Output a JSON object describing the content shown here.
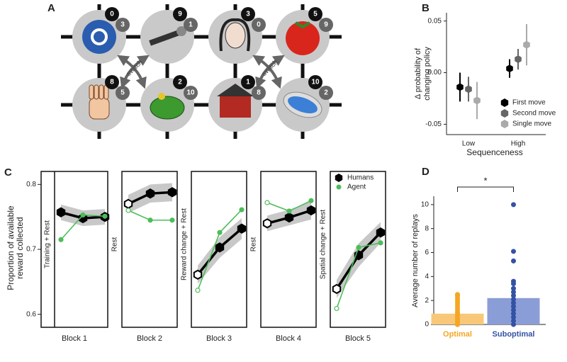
{
  "diagram": {
    "panel_label": "A",
    "nodes": [
      {
        "dark": 0,
        "light": 3
      },
      {
        "dark": 9,
        "light": 1
      },
      {
        "dark": 3,
        "light": 0
      },
      {
        "dark": 5,
        "light": 9
      },
      {
        "dark": 8,
        "light": 5
      },
      {
        "dark": 2,
        "light": 10
      },
      {
        "dark": 1,
        "light": 8
      },
      {
        "dark": 10,
        "light": 2
      }
    ],
    "links": [
      "switch",
      "switch"
    ]
  },
  "chart_data": [
    {
      "type": "errorbar",
      "panel_label": "B",
      "ylabel": [
        "Δ probability of",
        "changing policy"
      ],
      "xlabel": "Sequenceness",
      "categories": [
        "Low",
        "High"
      ],
      "series": [
        {
          "name": "First move",
          "color": "#000000",
          "values": [
            -0.014,
            0.004
          ],
          "errors": [
            0.014,
            0.009
          ]
        },
        {
          "name": "Second move",
          "color": "#666666",
          "values": [
            -0.016,
            0.013
          ],
          "errors": [
            0.012,
            0.01
          ]
        },
        {
          "name": "Single move",
          "color": "#aaaaaa",
          "values": [
            -0.027,
            0.027
          ],
          "errors": [
            0.018,
            0.02
          ]
        }
      ],
      "ylim": [
        -0.06,
        0.058
      ],
      "yticks": [
        {
          "value": -0.05,
          "label": "-0.05"
        },
        {
          "value": 0,
          "label": "0.00"
        },
        {
          "value": 0.05,
          "label": "0.05"
        }
      ],
      "legend": "lower-right"
    },
    {
      "type": "line",
      "panel_label": "C",
      "ylabel": [
        "Proportion of available",
        "reward collected"
      ],
      "blocks": [
        "Block 1",
        "Block 2",
        "Block 3",
        "Block 4",
        "Block 5"
      ],
      "conditions": [
        "Training + Rest",
        "Rest",
        "Reward change + Rest",
        "Rest",
        "Spatial change + Rest"
      ],
      "series": [
        {
          "name": "Humans",
          "color": "#000000",
          "values": [
            [
              0.757,
              0.748,
              0.75
            ],
            [
              0.77,
              0.786,
              0.788
            ],
            [
              0.661,
              0.703,
              0.732
            ],
            [
              0.74,
              0.749,
              0.76
            ],
            [
              0.639,
              0.691,
              0.726
            ]
          ],
          "errors": [
            [
              0.012,
              0.012,
              0.012
            ],
            [
              0.014,
              0.014,
              0.014
            ],
            [
              0.014,
              0.016,
              0.016
            ],
            [
              0.012,
              0.012,
              0.014
            ],
            [
              0.014,
              0.018,
              0.016
            ]
          ]
        },
        {
          "name": "Agent",
          "color": "#4dbd5a",
          "values": [
            [
              0.715,
              0.753,
              0.751
            ],
            [
              0.76,
              0.745,
              0.745
            ],
            [
              0.637,
              0.726,
              0.761
            ],
            [
              0.772,
              0.759,
              0.775
            ],
            [
              0.609,
              0.703,
              0.71
            ]
          ]
        }
      ],
      "ylim": [
        0.58,
        0.82
      ],
      "yticks": [
        0.6,
        0.7,
        0.8
      ],
      "legend": "upper-right"
    },
    {
      "type": "bar",
      "panel_label": "D",
      "ylabel": "Average number of replays",
      "categories": [
        "Optimal",
        "Suboptimal"
      ],
      "values": [
        0.9,
        2.2
      ],
      "colors": [
        "#f8c777",
        "#8b9dd6"
      ],
      "point_colors": [
        "#f5a623",
        "#3452a4"
      ],
      "points": [
        [
          0,
          0,
          0,
          0,
          0.2,
          0.4,
          0.6,
          0.8,
          1,
          1.2,
          1.4,
          1.6,
          1.8,
          2,
          2.2,
          2.4,
          2.5
        ],
        [
          0,
          0.3,
          0.6,
          0.9,
          1.2,
          1.5,
          1.8,
          2.1,
          2.4,
          2.7,
          3,
          3.4,
          3.6,
          5.3,
          6.1,
          10
        ]
      ],
      "ylim": [
        0,
        10.7
      ],
      "yticks": [
        0,
        2,
        4,
        6,
        8,
        10
      ],
      "annotation": "*"
    }
  ]
}
